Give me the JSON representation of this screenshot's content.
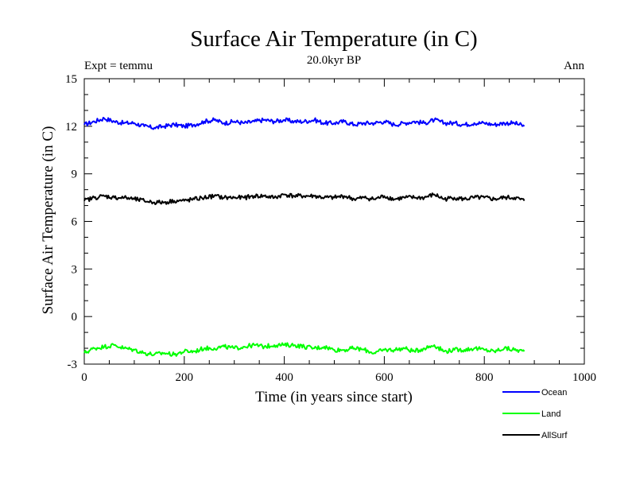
{
  "chart_data": {
    "type": "line",
    "title": "Surface Air Temperature (in C)",
    "subtitle": "20.0kyr BP",
    "left_label": "Expt = temmu",
    "right_label": "Ann",
    "xlabel": "Time (in years since start)",
    "ylabel": "Surface Air Temperature (in C)",
    "xlim": [
      0,
      1000
    ],
    "ylim": [
      -3,
      15
    ],
    "xticks": [
      0,
      200,
      400,
      600,
      800,
      1000
    ],
    "yticks": [
      -3,
      0,
      3,
      6,
      9,
      12,
      15
    ],
    "grid": false,
    "legend_position": "bottom-right",
    "series": [
      {
        "name": "Ocean",
        "color": "#0000ff",
        "x": [
          0,
          20,
          40,
          60,
          80,
          100,
          120,
          140,
          160,
          180,
          200,
          220,
          240,
          260,
          280,
          300,
          320,
          340,
          360,
          380,
          400,
          420,
          440,
          460,
          480,
          500,
          520,
          540,
          560,
          580,
          600,
          620,
          640,
          660,
          680,
          700,
          720,
          740,
          760,
          780,
          800,
          820,
          840,
          860,
          880
        ],
        "values": [
          12.1,
          12.3,
          12.5,
          12.3,
          12.2,
          12.2,
          12.0,
          11.9,
          12.0,
          12.1,
          12.0,
          12.1,
          12.3,
          12.4,
          12.2,
          12.3,
          12.2,
          12.3,
          12.4,
          12.3,
          12.4,
          12.3,
          12.3,
          12.4,
          12.2,
          12.2,
          12.3,
          12.1,
          12.2,
          12.2,
          12.3,
          12.1,
          12.2,
          12.3,
          12.2,
          12.4,
          12.2,
          12.2,
          12.1,
          12.2,
          12.2,
          12.1,
          12.2,
          12.2,
          12.0
        ]
      },
      {
        "name": "Land",
        "color": "#00ff00",
        "x": [
          0,
          20,
          40,
          60,
          80,
          100,
          120,
          140,
          160,
          180,
          200,
          220,
          240,
          260,
          280,
          300,
          320,
          340,
          360,
          380,
          400,
          420,
          440,
          460,
          480,
          500,
          520,
          540,
          560,
          580,
          600,
          620,
          640,
          660,
          680,
          700,
          720,
          740,
          760,
          780,
          800,
          820,
          840,
          860,
          880
        ],
        "values": [
          -2.3,
          -2.0,
          -1.9,
          -1.8,
          -2.0,
          -2.1,
          -2.3,
          -2.4,
          -2.3,
          -2.4,
          -2.2,
          -2.2,
          -2.0,
          -2.0,
          -1.9,
          -2.0,
          -1.9,
          -1.8,
          -1.9,
          -1.8,
          -1.8,
          -1.8,
          -1.9,
          -2.0,
          -1.9,
          -2.1,
          -2.1,
          -2.0,
          -2.1,
          -2.3,
          -2.1,
          -2.1,
          -2.0,
          -2.2,
          -2.0,
          -1.8,
          -2.2,
          -2.1,
          -2.1,
          -2.0,
          -2.1,
          -2.2,
          -2.0,
          -2.1,
          -2.2
        ]
      },
      {
        "name": "AllSurf",
        "color": "#000000",
        "x": [
          0,
          20,
          40,
          60,
          80,
          100,
          120,
          140,
          160,
          180,
          200,
          220,
          240,
          260,
          280,
          300,
          320,
          340,
          360,
          380,
          400,
          420,
          440,
          460,
          480,
          500,
          520,
          540,
          560,
          580,
          600,
          620,
          640,
          660,
          680,
          700,
          720,
          740,
          760,
          780,
          800,
          820,
          840,
          860,
          880
        ],
        "values": [
          7.3,
          7.5,
          7.6,
          7.5,
          7.5,
          7.4,
          7.3,
          7.2,
          7.2,
          7.3,
          7.3,
          7.4,
          7.5,
          7.6,
          7.5,
          7.5,
          7.5,
          7.6,
          7.6,
          7.5,
          7.7,
          7.6,
          7.6,
          7.6,
          7.5,
          7.5,
          7.6,
          7.4,
          7.5,
          7.4,
          7.6,
          7.4,
          7.5,
          7.5,
          7.5,
          7.7,
          7.4,
          7.5,
          7.4,
          7.5,
          7.5,
          7.4,
          7.5,
          7.5,
          7.3
        ]
      }
    ]
  }
}
